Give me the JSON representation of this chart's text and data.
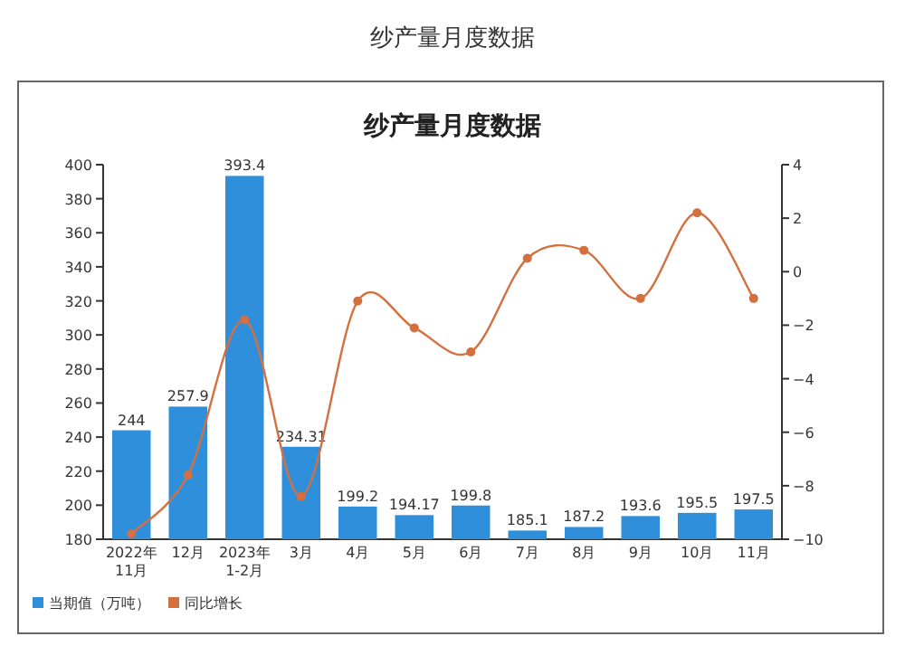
{
  "chart_data": {
    "type": "bar",
    "title": "纱产量月度数据",
    "annotations": [
      "纱产量月度数据"
    ],
    "categories": [
      "2022年\n11月",
      "12月",
      "2023年\n1-2月",
      "3月",
      "4月",
      "5月",
      "6月",
      "7月",
      "8月",
      "9月",
      "10月",
      "11月"
    ],
    "series": [
      {
        "name": "当期值（万吨）",
        "color": "#2f8fdb",
        "values": [
          244,
          257.9,
          393.4,
          234.31,
          199.2,
          194.17,
          199.8,
          185.1,
          187.2,
          193.6,
          195.5,
          197.5
        ],
        "value_labels": [
          "244",
          "257.9",
          "393.4",
          "234.31",
          "199.2",
          "194.17",
          "199.8",
          "185.1",
          "187.2",
          "193.6",
          "195.5",
          "197.5"
        ]
      },
      {
        "name": "同比增长",
        "type": "line",
        "axis": "y2",
        "color": "#d4703f",
        "marker": "circle",
        "values": [
          -9.8,
          -7.6,
          -1.8,
          -8.4,
          -1.1,
          -2.1,
          -3.0,
          0.5,
          0.8,
          -1.0,
          2.2,
          -1.0
        ]
      }
    ],
    "ylim": [
      180,
      400
    ],
    "yticks": [
      180,
      200,
      220,
      240,
      260,
      280,
      300,
      320,
      340,
      360,
      380,
      400
    ],
    "y2lim": [
      -10,
      4
    ],
    "y2ticks": [
      -10,
      -8,
      -6,
      -4,
      -2,
      0,
      2,
      4
    ],
    "grid": false,
    "legend": "bottom left"
  }
}
